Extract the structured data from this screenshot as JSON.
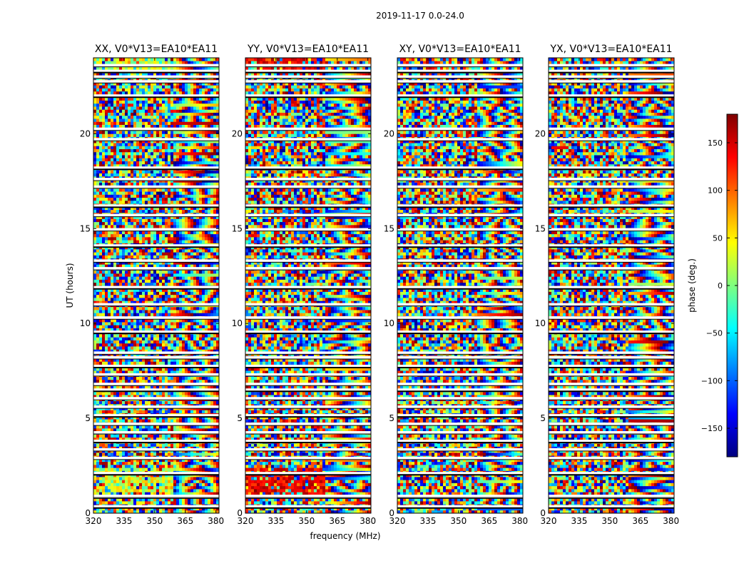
{
  "figure": {
    "title": "2019-11-17 0.0-24.0",
    "xlabel": "frequency (MHz)",
    "ylabel": "UT (hours)"
  },
  "chart_data": {
    "type": "heatmap",
    "suptitle": "2019-11-17 0.0-24.0",
    "panels": [
      {
        "title": "XX, V0*V13=EA10*EA11",
        "correlation": "XX"
      },
      {
        "title": "YY, V0*V13=EA10*EA11",
        "correlation": "YY"
      },
      {
        "title": "XY, V0*V13=EA10*EA11",
        "correlation": "XY"
      },
      {
        "title": "YX, V0*V13=EA10*EA11",
        "correlation": "YX"
      }
    ],
    "x": {
      "label": "frequency (MHz)",
      "lim": [
        320,
        381.5
      ],
      "ticks": [
        320,
        335,
        350,
        365,
        380
      ],
      "tick_labels": [
        "320",
        "335",
        "350",
        "365",
        "380"
      ]
    },
    "y": {
      "label": "UT (hours)",
      "lim": [
        0,
        24
      ],
      "ticks": [
        0,
        5,
        10,
        15,
        20
      ],
      "tick_labels": [
        "0",
        "5",
        "10",
        "15",
        "20"
      ]
    },
    "colorbar": {
      "label": "phase (deg.)",
      "lim": [
        -180,
        180
      ],
      "ticks": [
        -150,
        -100,
        -50,
        0,
        50,
        100,
        150
      ],
      "tick_labels": [
        "−150",
        "−100",
        "−50",
        "0",
        "50",
        "100",
        "150"
      ],
      "colormap": "jet",
      "colors": [
        "#00007f",
        "#0000ff",
        "#007fff",
        "#00ffff",
        "#7fff7f",
        "#ffff00",
        "#ff7f00",
        "#ff0000",
        "#7f0000"
      ]
    },
    "flagged_ut_hours": [
      0.35,
      0.85,
      0.9,
      2.1,
      2.9,
      3.35,
      3.8,
      4.25,
      4.7,
      5.15,
      5.6,
      6.05,
      6.5,
      6.8,
      7.3,
      7.75,
      8.2,
      8.45,
      9.55,
      10.3,
      11.0,
      11.9,
      12.9,
      13.3,
      14.1,
      14.95,
      15.7,
      16.2,
      17.2,
      17.6,
      18.2,
      19.7,
      20.25,
      22.0,
      22.75,
      23.0,
      23.3,
      23.6
    ]
  }
}
